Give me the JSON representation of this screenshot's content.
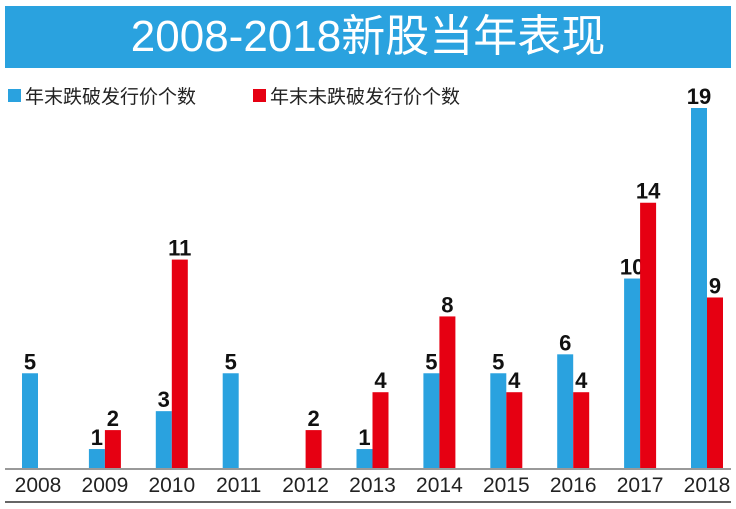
{
  "chart_data": {
    "type": "bar",
    "title": "2008-2018新股当年表现",
    "categories": [
      "2008",
      "2009",
      "2010",
      "2011",
      "2012",
      "2013",
      "2014",
      "2015",
      "2016",
      "2017",
      "2018"
    ],
    "series": [
      {
        "name": "年末跌破发行价个数",
        "color": "#2aa2df",
        "values": [
          5,
          1,
          3,
          5,
          null,
          1,
          5,
          5,
          6,
          10,
          19
        ]
      },
      {
        "name": "年末未跌破发行价个数",
        "color": "#e60012",
        "values": [
          null,
          2,
          11,
          null,
          2,
          4,
          8,
          4,
          4,
          14,
          9
        ]
      }
    ],
    "xlabel": "",
    "ylabel": "",
    "ylim": [
      0,
      19
    ],
    "legend": "top-left",
    "grid": false
  }
}
